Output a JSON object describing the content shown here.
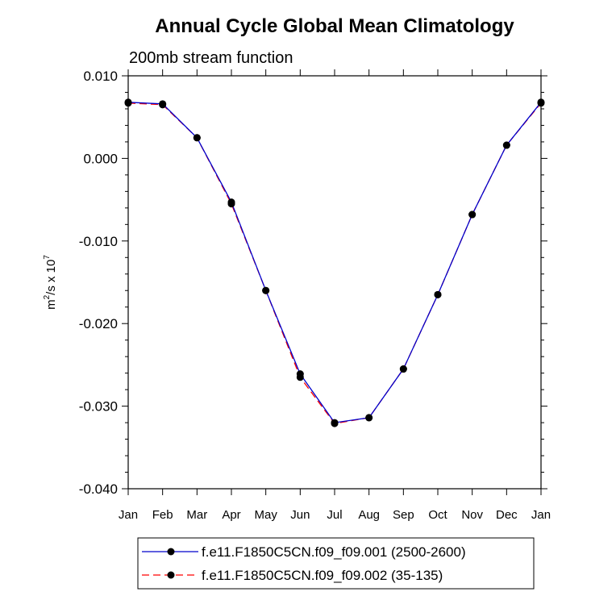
{
  "chart_data": {
    "type": "line",
    "title": "Annual Cycle Global Mean Climatology",
    "subtitle": "200mb stream function",
    "ylabel": {
      "base": "m",
      "sup1": "2",
      "mid": "/s x 10",
      "sup2": "7"
    },
    "xlabel": "",
    "categories": [
      "Jan",
      "Feb",
      "Mar",
      "Apr",
      "May",
      "Jun",
      "Jul",
      "Aug",
      "Sep",
      "Oct",
      "Nov",
      "Dec",
      "Jan"
    ],
    "ylim": [
      -0.04,
      0.01
    ],
    "yticks": [
      0.01,
      0.0,
      -0.01,
      -0.02,
      -0.03,
      -0.04
    ],
    "ytick_labels": [
      "0.010",
      "0.000",
      "-0.010",
      "-0.020",
      "-0.030",
      "-0.040"
    ],
    "series": [
      {
        "name": "f.e11.F1850C5CN.f09_f09.001 (2500-2600)",
        "color": "#0000cc",
        "dash": "solid",
        "values": [
          0.0068,
          0.0066,
          0.0025,
          -0.0053,
          -0.016,
          -0.0261,
          -0.032,
          -0.0314,
          -0.0255,
          -0.0165,
          -0.0068,
          0.0016,
          0.0068
        ]
      },
      {
        "name": "f.e11.F1850C5CN.f09_f09.002 (35-135)",
        "color": "#ff0000",
        "dash": "dashed",
        "values": [
          0.0067,
          0.0065,
          0.0025,
          -0.0055,
          -0.016,
          -0.0265,
          -0.0321,
          -0.0314,
          -0.0255,
          -0.0165,
          -0.0068,
          0.0016,
          0.0067
        ]
      }
    ],
    "grid": false,
    "legend": "bottom"
  }
}
